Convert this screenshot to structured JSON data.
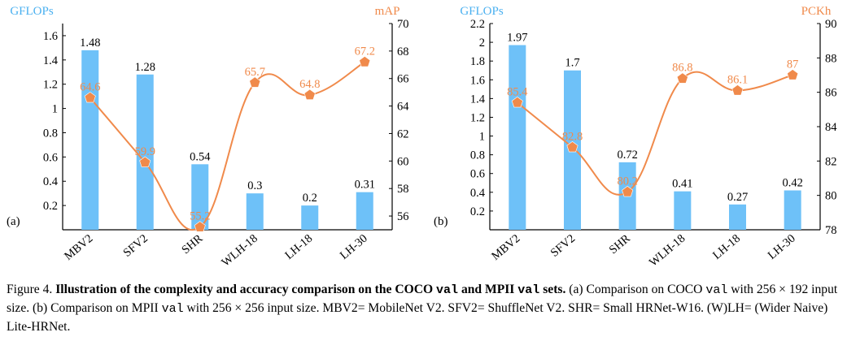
{
  "colors": {
    "bar": "#6ec1f8",
    "line": "#f08a4b",
    "left_axis_label": "#4ab0f0",
    "right_axis_label": "#f08a4b",
    "axis": "#000000"
  },
  "chart_data": [
    {
      "type": "bar",
      "panel_label": "(a)",
      "categories": [
        "MBV2",
        "SFV2",
        "SHR",
        "WLH-18",
        "LH-18",
        "LH-30"
      ],
      "ylabel": "GFLOPs",
      "y2label": "mAP",
      "ylim": [
        0,
        1.7
      ],
      "y2lim": [
        55,
        70
      ],
      "yticks": [
        "0.2",
        "0.4",
        "0.6",
        "0.8",
        "1",
        "1.2",
        "1.4",
        "1.6"
      ],
      "y2ticks": [
        "56",
        "58",
        "60",
        "62",
        "64",
        "66",
        "68",
        "70"
      ],
      "series": [
        {
          "kind": "bar",
          "axis": "left",
          "values": [
            1.48,
            1.28,
            0.54,
            0.3,
            0.2,
            0.31
          ],
          "labels": [
            "1.48",
            "1.28",
            "0.54",
            "0.3",
            "0.2",
            "0.31"
          ]
        },
        {
          "kind": "line",
          "axis": "right",
          "values": [
            64.6,
            59.9,
            55.2,
            65.7,
            64.8,
            67.2
          ],
          "labels": [
            "64.6",
            "59.9",
            "55.2",
            "65.7",
            "64.8",
            "67.2"
          ]
        }
      ]
    },
    {
      "type": "bar",
      "panel_label": "(b)",
      "categories": [
        "MBV2",
        "SFV2",
        "SHR",
        "WLH-18",
        "LH-18",
        "LH-30"
      ],
      "ylabel": "GFLOPs",
      "y2label": "PCKh",
      "ylim": [
        0,
        2.2
      ],
      "y2lim": [
        78,
        90
      ],
      "yticks": [
        "0.2",
        "0.4",
        "0.6",
        "0.8",
        "1",
        "1.2",
        "1.4",
        "1.6",
        "1.8",
        "2",
        "2.2"
      ],
      "y2ticks": [
        "78",
        "80",
        "82",
        "84",
        "86",
        "88",
        "90"
      ],
      "series": [
        {
          "kind": "bar",
          "axis": "left",
          "values": [
            1.97,
            1.7,
            0.72,
            0.41,
            0.27,
            0.42
          ],
          "labels": [
            "1.97",
            "1.7",
            "0.72",
            "0.41",
            "0.27",
            "0.42"
          ]
        },
        {
          "kind": "line",
          "axis": "right",
          "values": [
            85.4,
            82.8,
            80.2,
            86.8,
            86.1,
            87
          ],
          "labels": [
            "85.4",
            "82.8",
            "80.2",
            "86.8",
            "86.1",
            "87"
          ]
        }
      ]
    }
  ],
  "caption": {
    "figure_label": "Figure 4.",
    "bold_part1": "Illustration of the complexity and accuracy comparison on the COCO",
    "bold_code1": "val",
    "bold_part2": "and MPII",
    "bold_code2": "val",
    "bold_part3": "sets.",
    "text1": "(a) Comparison on COCO",
    "code1": "val",
    "text2": "with 256 × 192 input size. (b) Comparison on MPII",
    "code2": "val",
    "text3": "with 256 × 256 input size. MBV2= MobileNet V2. SFV2= ShuffleNet V2. SHR= Small HRNet-W16. (W)LH= (Wider Naive) Lite-HRNet."
  }
}
